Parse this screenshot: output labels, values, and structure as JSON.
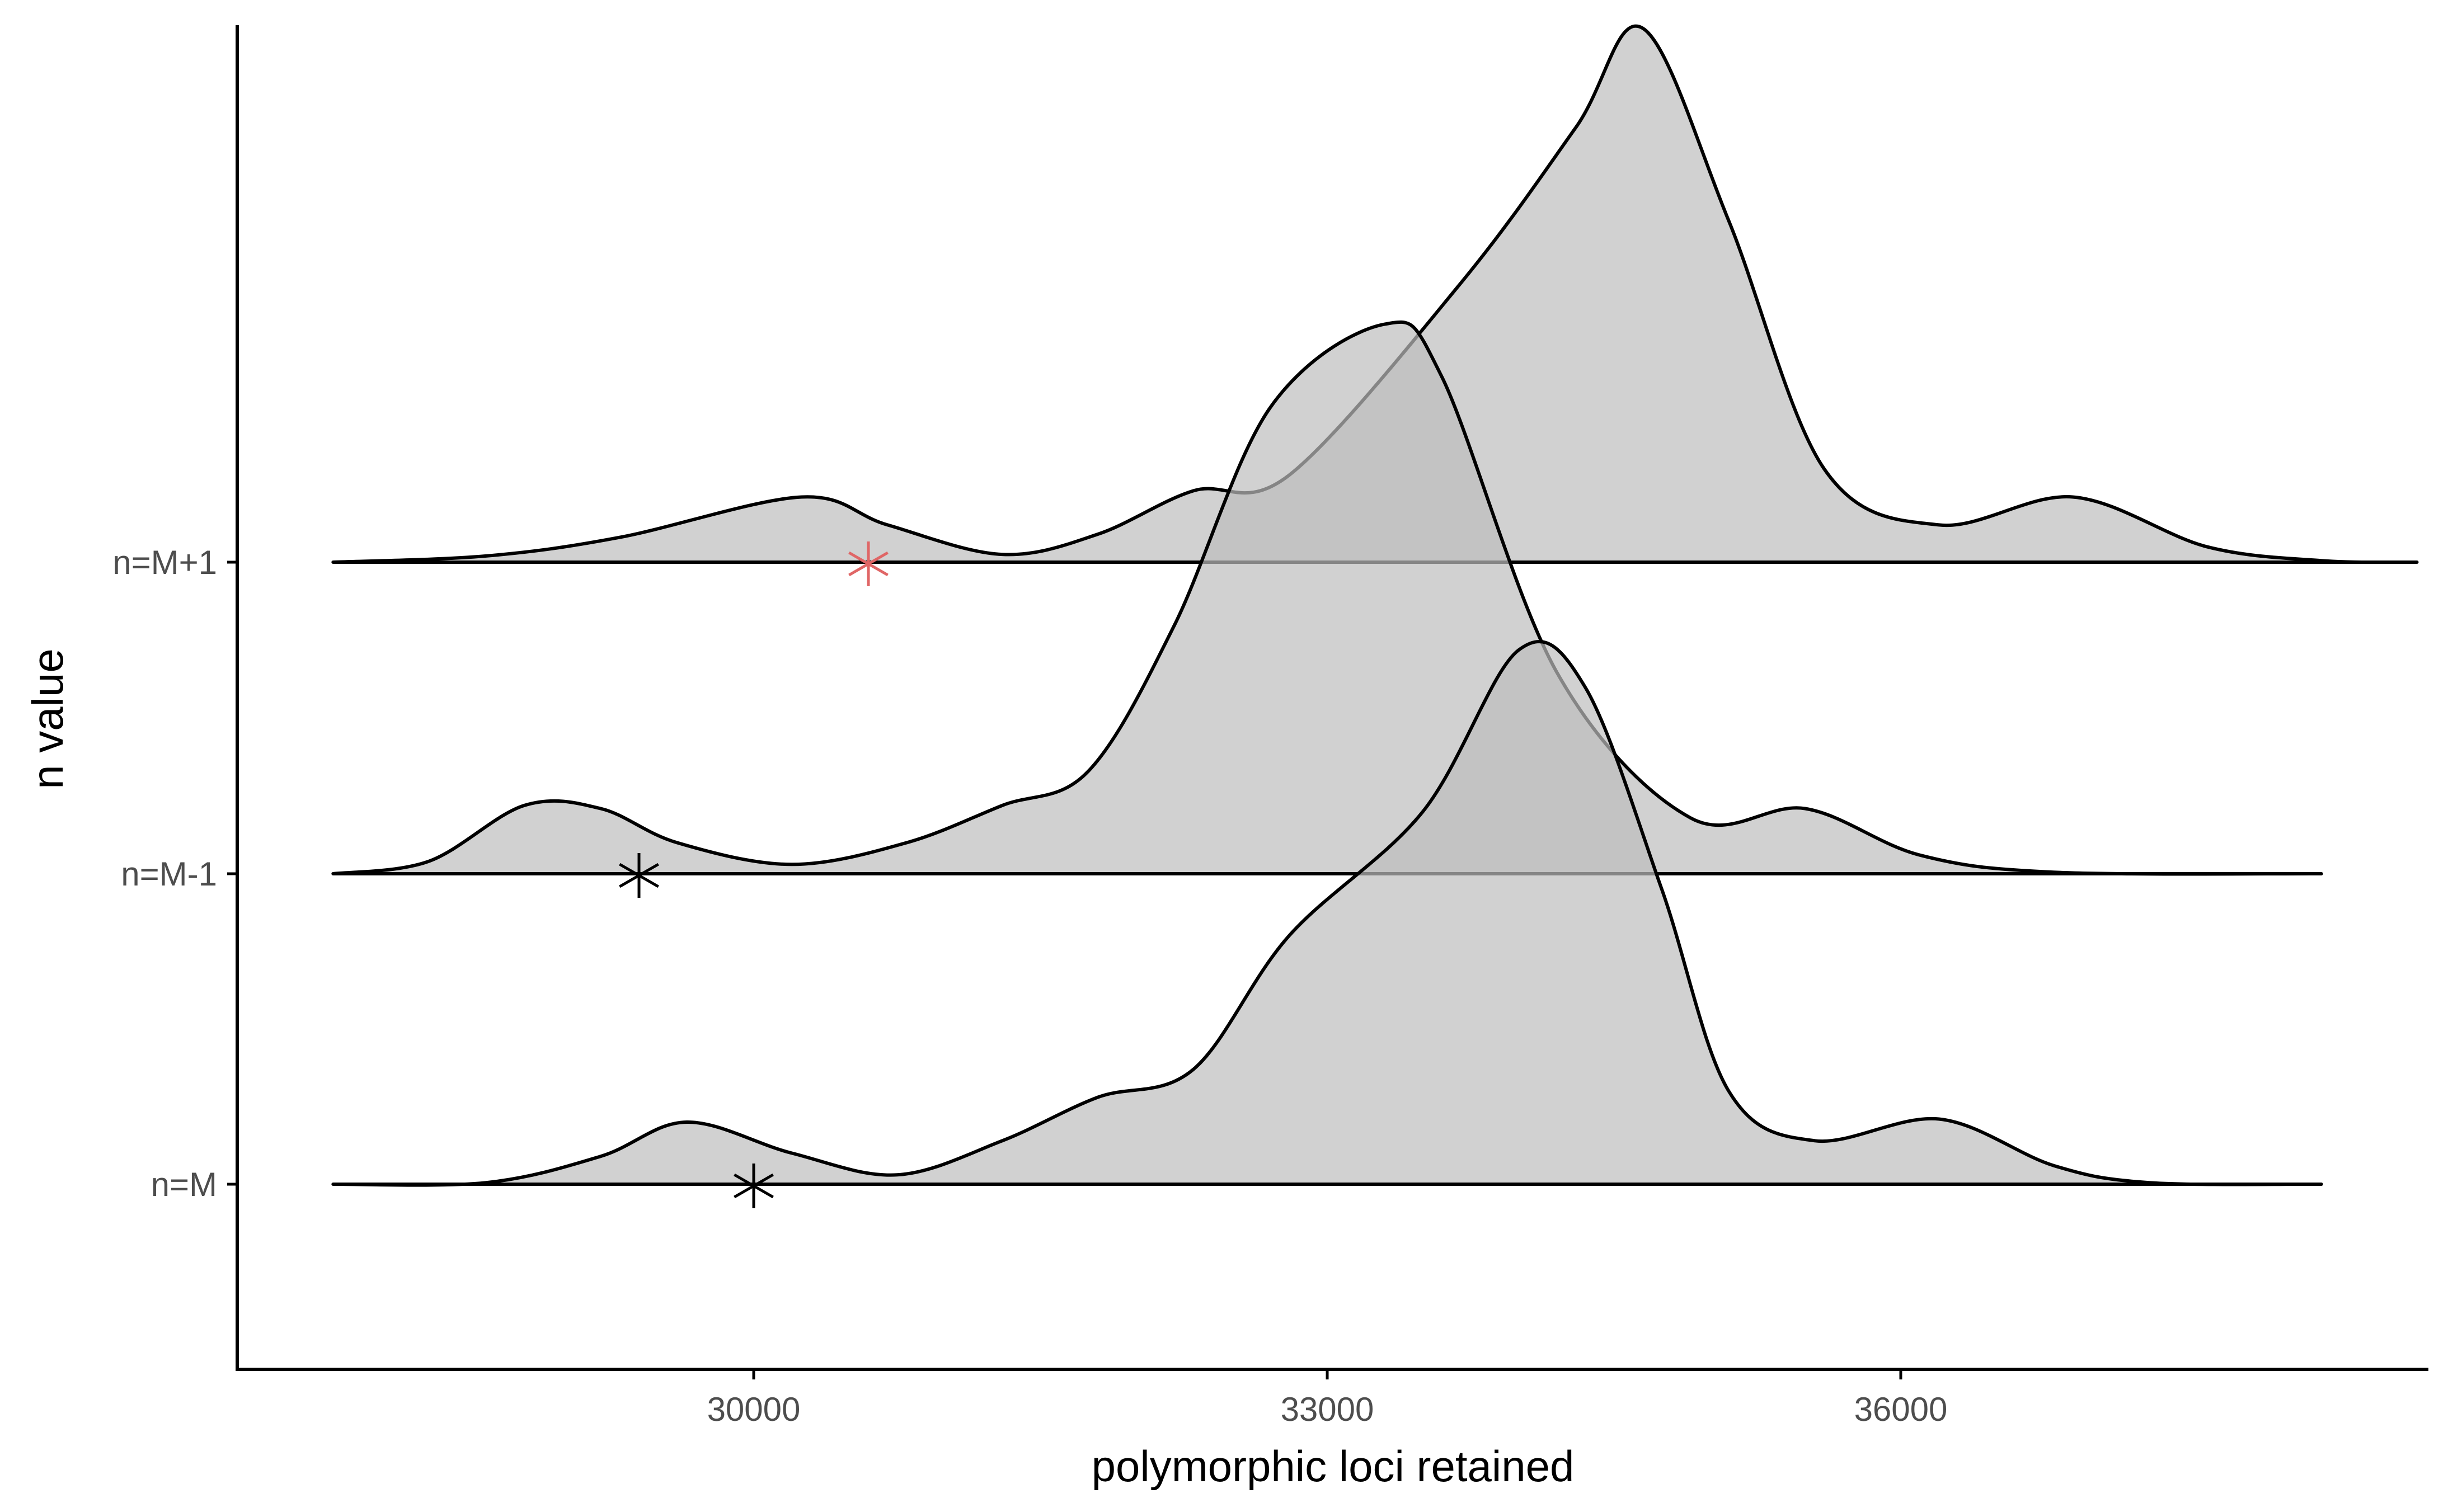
{
  "chart_data": {
    "type": "ridgeline",
    "xlabel": "polymorphic loci retained",
    "ylabel": "n value",
    "xlim": [
      27300,
      39250
    ],
    "x_ticks": [
      30000,
      33000,
      36000
    ],
    "grid": false,
    "legend": "none",
    "fill_color": "#bebebe",
    "line_color": "#000000",
    "series": [
      {
        "name": "n=M",
        "marker_x": 30000,
        "marker_color": "#000000",
        "density": [
          [
            27800,
            0
          ],
          [
            28600,
            0.005
          ],
          [
            29200,
            0.09
          ],
          [
            29650,
            0.2
          ],
          [
            30200,
            0.1
          ],
          [
            30750,
            0.03
          ],
          [
            31300,
            0.14
          ],
          [
            31800,
            0.28
          ],
          [
            32300,
            0.37
          ],
          [
            32800,
            0.8
          ],
          [
            33500,
            1.2
          ],
          [
            34000,
            1.72
          ],
          [
            34350,
            1.6
          ],
          [
            34750,
            0.95
          ],
          [
            35100,
            0.3
          ],
          [
            35550,
            0.14
          ],
          [
            36200,
            0.21
          ],
          [
            36800,
            0.06
          ],
          [
            37300,
            0.005
          ],
          [
            38200,
            0
          ]
        ]
      },
      {
        "name": "n=M-1",
        "marker_x": 29400,
        "marker_color": "#000000",
        "density": [
          [
            27800,
            0
          ],
          [
            28300,
            0.04
          ],
          [
            28800,
            0.22
          ],
          [
            29200,
            0.21
          ],
          [
            29600,
            0.1
          ],
          [
            30200,
            0.03
          ],
          [
            30800,
            0.1
          ],
          [
            31300,
            0.22
          ],
          [
            31750,
            0.33
          ],
          [
            32200,
            0.8
          ],
          [
            32700,
            1.5
          ],
          [
            33300,
            1.77
          ],
          [
            33600,
            1.6
          ],
          [
            34200,
            0.65
          ],
          [
            34900,
            0.18
          ],
          [
            35500,
            0.21
          ],
          [
            36100,
            0.06
          ],
          [
            36800,
            0.005
          ],
          [
            38200,
            0
          ]
        ]
      },
      {
        "name": "n=M+1",
        "marker_x": 30600,
        "marker_color": "#e06666",
        "density": [
          [
            27800,
            0
          ],
          [
            28600,
            0.02
          ],
          [
            29300,
            0.08
          ],
          [
            30250,
            0.21
          ],
          [
            30700,
            0.12
          ],
          [
            31300,
            0.025
          ],
          [
            31800,
            0.09
          ],
          [
            32300,
            0.23
          ],
          [
            32800,
            0.28
          ],
          [
            33700,
            0.9
          ],
          [
            34300,
            1.4
          ],
          [
            34650,
            1.72
          ],
          [
            35100,
            1.1
          ],
          [
            35600,
            0.3
          ],
          [
            36200,
            0.12
          ],
          [
            36900,
            0.21
          ],
          [
            37600,
            0.05
          ],
          [
            38200,
            0.005
          ],
          [
            38700,
            0
          ]
        ]
      }
    ]
  }
}
